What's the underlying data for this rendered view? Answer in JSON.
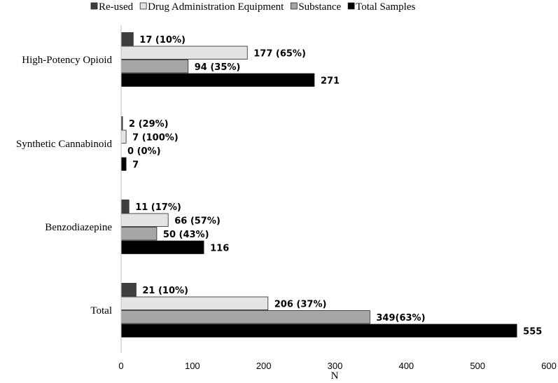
{
  "chart_data": {
    "type": "bar",
    "orientation": "horizontal",
    "xlabel": "N",
    "xlim": [
      0,
      600
    ],
    "xticks": [
      0,
      100,
      200,
      300,
      400,
      500,
      600
    ],
    "legend_position": "top",
    "grid": false,
    "categories": [
      "High-Potency Opioid",
      "Synthetic Cannabinoid",
      "Benzodiazepine",
      "Total"
    ],
    "series": [
      {
        "name": "Re-used",
        "color": "#3f3f3f",
        "values": [
          17,
          2,
          11,
          21
        ],
        "labels": [
          "17 (10%)",
          "2 (29%)",
          "11 (17%)",
          "21 (10%)"
        ]
      },
      {
        "name": "Drug Administration Equipment",
        "color": "#e4e4e4",
        "values": [
          177,
          7,
          66,
          206
        ],
        "labels": [
          "177 (65%)",
          "7 (100%)",
          "66 (57%)",
          "206 (37%)"
        ]
      },
      {
        "name": "Substance",
        "color": "#a6a6a6",
        "values": [
          94,
          0,
          50,
          349
        ],
        "labels": [
          "94 (35%)",
          "0 (0%)",
          "50 (43%)",
          "349(63%)"
        ]
      },
      {
        "name": "Total Samples",
        "color": "#000000",
        "values": [
          271,
          7,
          116,
          555
        ],
        "labels": [
          "271",
          "7",
          "116",
          "555"
        ]
      }
    ]
  }
}
